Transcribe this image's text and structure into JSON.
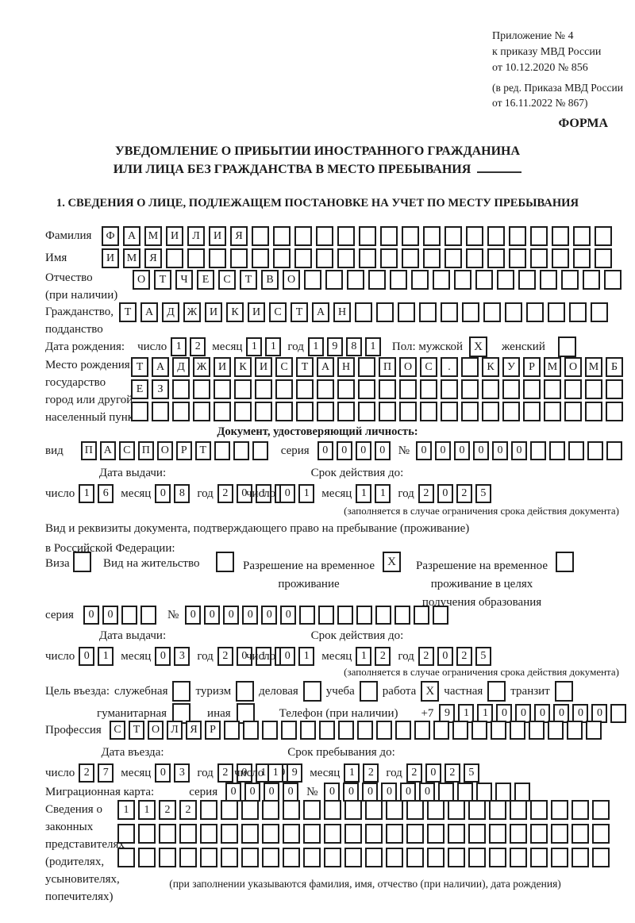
{
  "header": {
    "appendix": [
      "Приложение № 4",
      "к приказу МВД России",
      "от 10.12.2020 № 856"
    ],
    "revision": [
      "(в ред. Приказа МВД России",
      "от 16.11.2022 № 867)"
    ],
    "form_label": "ФОРМА"
  },
  "title": {
    "line1": "УВЕДОМЛЕНИЕ О ПРИБЫТИИ ИНОСТРАННОГО ГРАЖДАНИНА",
    "line2": "ИЛИ ЛИЦА БЕЗ ГРАЖДАНСТВА В МЕСТО ПРЕБЫВАНИЯ"
  },
  "section1_heading": "1. СВЕДЕНИЯ О ЛИЦЕ, ПОДЛЕЖАЩЕМ ПОСТАНОВКЕ НА УЧЕТ ПО МЕСТУ ПРЕБЫВАНИЯ",
  "surname": {
    "label": "Фамилия",
    "chars": "ФАМИЛИЯ",
    "count": 24
  },
  "given_name": {
    "label": "Имя",
    "chars": "ИМЯ",
    "count": 24
  },
  "patronymic": {
    "label": "Отчество",
    "sublabel": "(при наличии)",
    "chars": "ОТЧЕСТВО",
    "count": 23
  },
  "citizenship": {
    "label": "Гражданство,",
    "sublabel": "подданство",
    "chars": "ТАДЖИКИСТАН",
    "count": 23
  },
  "birth_date": {
    "label": "Дата рождения:",
    "day": {
      "label": "число",
      "chars": "12",
      "count": 2
    },
    "month": {
      "label": "месяц",
      "chars": "11",
      "count": 2
    },
    "year": {
      "label": "год",
      "chars": "1981",
      "count": 4
    },
    "sex_label": "Пол: мужской",
    "male": {
      "checked": "X"
    },
    "female_label": "женский",
    "female": {
      "checked": ""
    }
  },
  "birth_place": {
    "labels": [
      "Место рождения:",
      "государство",
      "город или другой",
      "населенный пункт"
    ],
    "row1": {
      "chars": "ТАДЖИКИСТАН ПОС. КУРМОМБ",
      "count": 24
    },
    "row2": {
      "chars": "ЕЗ",
      "count": 24
    },
    "row3": {
      "chars": "",
      "count": 24
    }
  },
  "identity_doc": {
    "heading": "Документ, удостоверяющий личность:",
    "kind_label": "вид",
    "kind": {
      "chars": "ПАСПОРТ",
      "count": 10
    },
    "series_label": "серия",
    "series": {
      "chars": "0000",
      "count": 4
    },
    "number_label": "№",
    "number": {
      "chars": "000000",
      "count": 11
    },
    "issue_heading": "Дата выдачи:",
    "issue": {
      "day": {
        "label": "число",
        "chars": "16",
        "count": 2
      },
      "month": {
        "label": "месяц",
        "chars": "08",
        "count": 2
      },
      "year": {
        "label": "год",
        "chars": "2018",
        "count": 4
      }
    },
    "expiry_heading": "Срок действия до:",
    "expiry": {
      "day": {
        "label": "число",
        "chars": "01",
        "count": 2
      },
      "month": {
        "label": "месяц",
        "chars": "11",
        "count": 2
      },
      "year": {
        "label": "год",
        "chars": "2025",
        "count": 4
      }
    },
    "note": "(заполняется в случае ограничения срока действия документа)"
  },
  "residence_doc": {
    "intro1": "Вид и реквизиты документа, подтверждающего право на пребывание (проживание)",
    "intro2": "в Российской Федерации:",
    "visa_label": "Виза",
    "visa": {
      "checked": ""
    },
    "permit_label": "Вид на жительство",
    "permit": {
      "checked": ""
    },
    "temp_line1": "Разрешение на временное",
    "temp_line2": "проживание",
    "temp": {
      "checked": "X"
    },
    "edu_line1": "Разрешение на временное",
    "edu_line2": "проживание в целях",
    "edu_line3": "получения образования",
    "edu": {
      "checked": ""
    },
    "series_label": "серия",
    "series": {
      "chars": "00",
      "count": 4
    },
    "number_label": "№",
    "number": {
      "chars": "000000",
      "count": 14
    },
    "issue_heading": "Дата выдачи:",
    "issue": {
      "day": {
        "label": "число",
        "chars": "01",
        "count": 2
      },
      "month": {
        "label": "месяц",
        "chars": "03",
        "count": 2
      },
      "year": {
        "label": "год",
        "chars": "2019",
        "count": 4
      }
    },
    "expiry_heading": "Срок действия до:",
    "expiry": {
      "day": {
        "label": "число",
        "chars": "01",
        "count": 2
      },
      "month": {
        "label": "месяц",
        "chars": "12",
        "count": 2
      },
      "year": {
        "label": "год",
        "chars": "2025",
        "count": 4
      }
    },
    "note": "(заполняется в случае ограничения срока действия документа)"
  },
  "purpose": {
    "label": "Цель въезда:",
    "official_label": "служебная",
    "official": {
      "checked": ""
    },
    "tourism_label": "туризм",
    "tourism": {
      "checked": ""
    },
    "business_label": "деловая",
    "business": {
      "checked": ""
    },
    "study_label": "учеба",
    "study": {
      "checked": ""
    },
    "work_label": "работа",
    "work": {
      "checked": "X"
    },
    "private_label": "частная",
    "private": {
      "checked": ""
    },
    "transit_label": "транзит",
    "transit": {
      "checked": ""
    },
    "humanitarian_label": "гуманитарная",
    "humanitarian": {
      "checked": ""
    },
    "other_label": "иная",
    "other": {
      "checked": ""
    },
    "phone_label": "Телефон (при наличии)",
    "phone_prefix": "+7",
    "phone": {
      "chars": "911000000",
      "count": 10
    }
  },
  "profession": {
    "label": "Профессия",
    "chars": "СТОЛЯР",
    "count": 26
  },
  "entry": {
    "date_heading": "Дата въезда:",
    "date": {
      "day": {
        "label": "число",
        "chars": "27",
        "count": 2
      },
      "month": {
        "label": "месяц",
        "chars": "03",
        "count": 2
      },
      "year": {
        "label": "год",
        "chars": "2019",
        "count": 4
      }
    },
    "until_heading": "Срок пребывания до:",
    "until": {
      "day": {
        "label": "число",
        "chars": "19",
        "count": 2
      },
      "month": {
        "label": "месяц",
        "chars": "12",
        "count": 2
      },
      "year": {
        "label": "год",
        "chars": "2025",
        "count": 4
      }
    }
  },
  "migration_card": {
    "label": "Миграционная карта:",
    "series_label": "серия",
    "series": {
      "chars": "0000",
      "count": 4
    },
    "number_label": "№",
    "number": {
      "chars": "000000",
      "count": 11
    }
  },
  "representatives": {
    "labels": [
      "Сведения о",
      "законных",
      "представителях",
      "(родителях,",
      "усыновителях,",
      "попечителях)"
    ],
    "row1": {
      "chars": "1122",
      "count": 24
    },
    "row2": {
      "chars": "",
      "count": 24
    },
    "row3": {
      "chars": "",
      "count": 24
    },
    "note": "(при заполнении указываются фамилия, имя, отчество (при наличии), дата рождения)"
  }
}
